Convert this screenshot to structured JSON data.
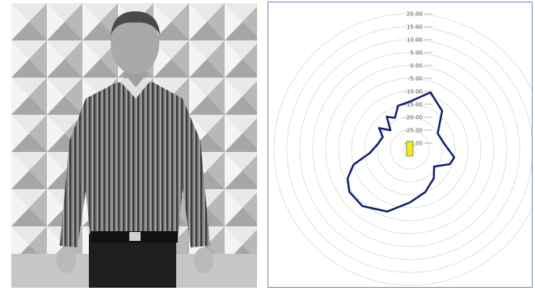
{
  "photo": {
    "subject_icon": "person-standing-icon",
    "background": "anechoic-chamber-foam-wedges"
  },
  "chart_data": {
    "type": "polar-line",
    "title": "",
    "rlim": [
      -30,
      20
    ],
    "ring_values": [
      20,
      15,
      10,
      5,
      0,
      -5,
      -10,
      -15,
      -20,
      -25,
      -30
    ],
    "ring_labels": [
      "20.00",
      "15.00",
      "10.00",
      "5.00",
      "0.00",
      "-5.00",
      "-10.00",
      "-15.00",
      "-20.00",
      "-25.00",
      "-30.00"
    ],
    "angle_unit": "degrees (0 = up, clockwise)",
    "series": [
      {
        "color": "#0c1b70",
        "points": [
          [
            0,
            -14
          ],
          [
            20,
            -9
          ],
          [
            40,
            -13
          ],
          [
            60,
            -20
          ],
          [
            80,
            -19
          ],
          [
            100,
            -15
          ],
          [
            110,
            -16
          ],
          [
            125,
            -21
          ],
          [
            140,
            -18
          ],
          [
            160,
            -15
          ],
          [
            180,
            -12
          ],
          [
            200,
            -7
          ],
          [
            220,
            -4
          ],
          [
            235,
            -4
          ],
          [
            245,
            -6
          ],
          [
            255,
            -10
          ],
          [
            265,
            -17
          ],
          [
            280,
            -20
          ],
          [
            295,
            -21
          ],
          [
            305,
            -18
          ],
          [
            315,
            -22
          ],
          [
            325,
            -17
          ],
          [
            335,
            -19
          ],
          [
            345,
            -15
          ],
          [
            360,
            -14
          ]
        ]
      }
    ],
    "grid": true,
    "center_marker_color": "#f5ea1a"
  }
}
